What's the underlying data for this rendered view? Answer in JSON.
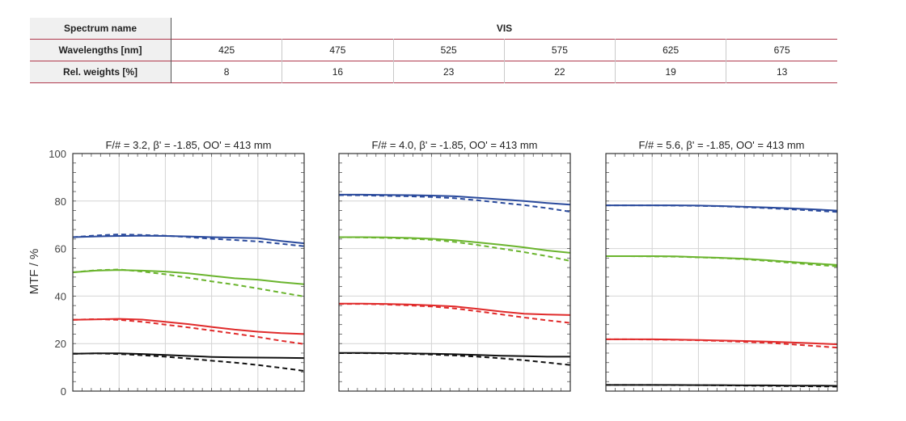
{
  "table": {
    "spectrum_label": "Spectrum name",
    "spectrum_value": "VIS",
    "wavelengths_label": "Wavelengths [nm]",
    "wavelengths": [
      "425",
      "475",
      "525",
      "575",
      "625",
      "675"
    ],
    "weights_label": "Rel. weights [%]",
    "weights": [
      "8",
      "16",
      "23",
      "22",
      "19",
      "13"
    ]
  },
  "chart_data": {
    "type": "line",
    "ylabel": "MTF / %",
    "ylim": [
      0,
      100
    ],
    "yticks": [
      "0",
      "20",
      "40",
      "60",
      "80",
      "100"
    ],
    "grid": true,
    "colors": {
      "blue": "#2a4a9c",
      "green": "#6ab42d",
      "red": "#e02b2b",
      "black": "#111111"
    },
    "x": [
      0,
      0.1,
      0.2,
      0.3,
      0.4,
      0.5,
      0.6,
      0.7,
      0.8,
      0.9,
      1.0
    ],
    "panels": [
      {
        "title": "F/# = 3.2, β' = -1.85, OO' = 413 mm",
        "series": [
          {
            "color": "blue",
            "style": "solid",
            "values": [
              64.8,
              65.1,
              65.3,
              65.4,
              65.3,
              65.1,
              64.8,
              64.6,
              64.4,
              63.2,
              62.2
            ]
          },
          {
            "color": "blue",
            "style": "dashed",
            "values": [
              64.8,
              65.5,
              66.0,
              65.7,
              65.4,
              64.8,
              64.1,
              63.6,
              63.0,
              62.0,
              61.0
            ]
          },
          {
            "color": "green",
            "style": "solid",
            "values": [
              50.0,
              50.7,
              51.0,
              50.7,
              50.3,
              49.6,
              48.5,
              47.5,
              46.9,
              45.8,
              45.0
            ]
          },
          {
            "color": "green",
            "style": "dashed",
            "values": [
              50.0,
              50.9,
              51.2,
              50.3,
              49.2,
              47.7,
              46.2,
              44.8,
              43.2,
              41.5,
              39.8
            ]
          },
          {
            "color": "red",
            "style": "solid",
            "values": [
              30.0,
              30.2,
              30.4,
              30.1,
              29.2,
              28.2,
              27.0,
              25.9,
              25.0,
              24.4,
              24.0
            ]
          },
          {
            "color": "red",
            "style": "dashed",
            "values": [
              30.0,
              30.3,
              30.0,
              29.2,
              28.0,
              26.8,
              25.5,
              24.2,
              22.8,
              21.2,
              19.8
            ]
          },
          {
            "color": "black",
            "style": "solid",
            "values": [
              15.7,
              15.9,
              15.9,
              15.6,
              15.2,
              14.8,
              14.4,
              14.2,
              14.1,
              14.0,
              13.9
            ]
          },
          {
            "color": "black",
            "style": "dashed",
            "values": [
              15.7,
              15.9,
              15.6,
              15.1,
              14.5,
              13.7,
              12.8,
              12.0,
              11.0,
              9.8,
              8.5
            ]
          }
        ]
      },
      {
        "title": "F/# = 4.0, β' = -1.85, OO' = 413 mm",
        "series": [
          {
            "color": "blue",
            "style": "solid",
            "values": [
              82.7,
              82.7,
              82.6,
              82.5,
              82.3,
              82.0,
              81.4,
              80.7,
              80.0,
              79.2,
              78.5
            ]
          },
          {
            "color": "blue",
            "style": "dashed",
            "values": [
              82.5,
              82.4,
              82.2,
              82.0,
              81.7,
              81.2,
              80.3,
              79.3,
              78.3,
              77.0,
              75.5
            ]
          },
          {
            "color": "green",
            "style": "solid",
            "values": [
              64.8,
              64.8,
              64.7,
              64.5,
              64.1,
              63.5,
              62.6,
              61.6,
              60.5,
              59.2,
              58.2
            ]
          },
          {
            "color": "green",
            "style": "dashed",
            "values": [
              64.8,
              64.7,
              64.5,
              64.2,
              63.7,
              62.8,
              61.5,
              60.0,
              58.5,
              56.8,
              54.8
            ]
          },
          {
            "color": "red",
            "style": "solid",
            "values": [
              36.8,
              36.8,
              36.7,
              36.5,
              36.1,
              35.6,
              34.6,
              33.5,
              32.6,
              32.2,
              32.0
            ]
          },
          {
            "color": "red",
            "style": "dashed",
            "values": [
              36.7,
              36.7,
              36.5,
              36.1,
              35.6,
              34.8,
              33.6,
              32.3,
              31.0,
              29.8,
              28.7
            ]
          },
          {
            "color": "black",
            "style": "solid",
            "values": [
              16.1,
              16.1,
              16.0,
              15.9,
              15.7,
              15.5,
              15.2,
              14.9,
              14.7,
              14.5,
              14.5
            ]
          },
          {
            "color": "black",
            "style": "dashed",
            "values": [
              16.0,
              16.0,
              15.9,
              15.7,
              15.4,
              15.0,
              14.5,
              13.8,
              13.0,
              12.0,
              11.0
            ]
          }
        ]
      },
      {
        "title": "F/# = 5.6, β' = -1.85, OO' = 413 mm",
        "series": [
          {
            "color": "blue",
            "style": "solid",
            "values": [
              78.2,
              78.2,
              78.2,
              78.2,
              78.1,
              77.9,
              77.6,
              77.3,
              76.9,
              76.5,
              76.0
            ]
          },
          {
            "color": "blue",
            "style": "dashed",
            "values": [
              78.2,
              78.2,
              78.2,
              78.1,
              78.0,
              77.8,
              77.4,
              77.0,
              76.5,
              76.0,
              75.4
            ]
          },
          {
            "color": "green",
            "style": "solid",
            "values": [
              56.8,
              56.8,
              56.8,
              56.7,
              56.4,
              56.1,
              55.7,
              55.1,
              54.4,
              53.7,
              53.1
            ]
          },
          {
            "color": "green",
            "style": "dashed",
            "values": [
              56.8,
              56.8,
              56.7,
              56.6,
              56.3,
              56.0,
              55.5,
              54.8,
              54.0,
              53.2,
              52.5
            ]
          },
          {
            "color": "red",
            "style": "solid",
            "values": [
              21.8,
              21.8,
              21.8,
              21.7,
              21.5,
              21.3,
              21.1,
              20.8,
              20.5,
              20.1,
              19.7
            ]
          },
          {
            "color": "red",
            "style": "dashed",
            "values": [
              21.8,
              21.8,
              21.7,
              21.6,
              21.4,
              21.1,
              20.7,
              20.3,
              19.7,
              19.0,
              18.3
            ]
          },
          {
            "color": "black",
            "style": "solid",
            "values": [
              2.6,
              2.6,
              2.6,
              2.6,
              2.5,
              2.5,
              2.4,
              2.4,
              2.3,
              2.3,
              2.2
            ]
          },
          {
            "color": "black",
            "style": "dashed",
            "values": [
              2.6,
              2.6,
              2.6,
              2.5,
              2.5,
              2.4,
              2.3,
              2.2,
              2.1,
              2.0,
              1.9
            ]
          }
        ]
      }
    ]
  }
}
